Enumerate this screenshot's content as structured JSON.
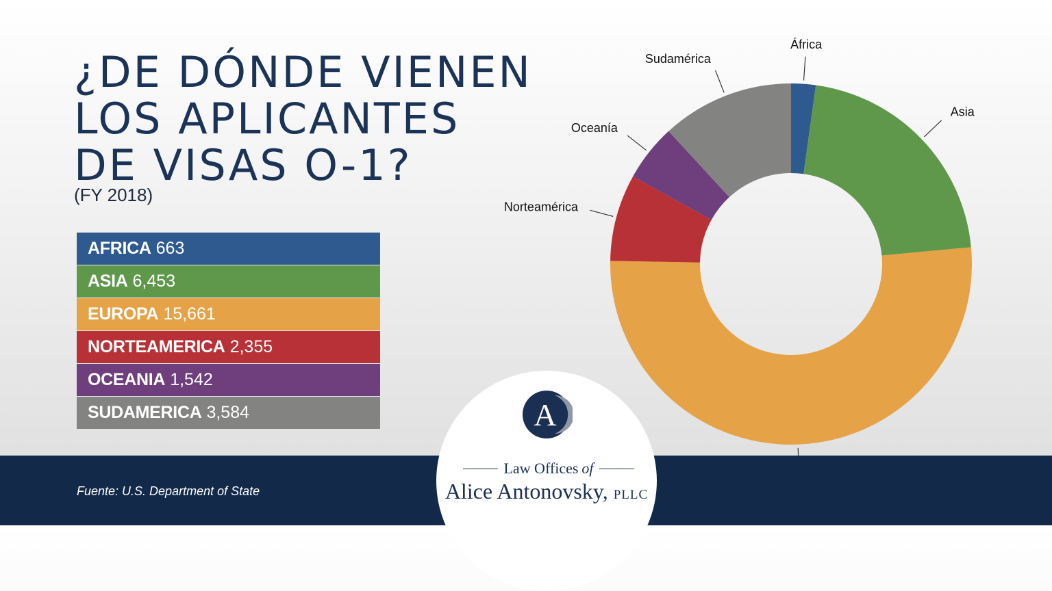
{
  "title_lines": [
    "¿De dónde vienen",
    "los aplicantes",
    "de visas O-1?"
  ],
  "subtitle": "(FY 2018)",
  "table_rows": [
    {
      "name": "AFRICA",
      "value": "663",
      "color": "#2f5a8f"
    },
    {
      "name": "ASIA",
      "value": "6,453",
      "color": "#5f984b"
    },
    {
      "name": "EUROPA",
      "value": "15,661",
      "color": "#e5a247"
    },
    {
      "name": "NORTEAMERICA",
      "value": "2,355",
      "color": "#b83136"
    },
    {
      "name": "OCEANIA",
      "value": "1,542",
      "color": "#6e3f7c"
    },
    {
      "name": "SUDAMERICA",
      "value": "3,584",
      "color": "#838382"
    }
  ],
  "chart_data": {
    "type": "pie",
    "variant": "donut",
    "series": [
      {
        "name": "África",
        "value": 663,
        "color": "#2f5a8f"
      },
      {
        "name": "Asia",
        "value": 6453,
        "color": "#5f984b"
      },
      {
        "name": "Europa",
        "value": 15661,
        "color": "#e5a247"
      },
      {
        "name": "Norteamérica",
        "value": 2355,
        "color": "#b83136"
      },
      {
        "name": "Oceanía",
        "value": 1542,
        "color": "#6e3f7c"
      },
      {
        "name": "Sudamérica",
        "value": 3584,
        "color": "#838382"
      }
    ]
  },
  "source": "Fuente: U.S. Department of State",
  "firm": {
    "line1_a": "Law Offices",
    "line1_b": "of",
    "name": "Alice Antonovsky,",
    "suffix": "PLLC",
    "monogram": "A"
  }
}
